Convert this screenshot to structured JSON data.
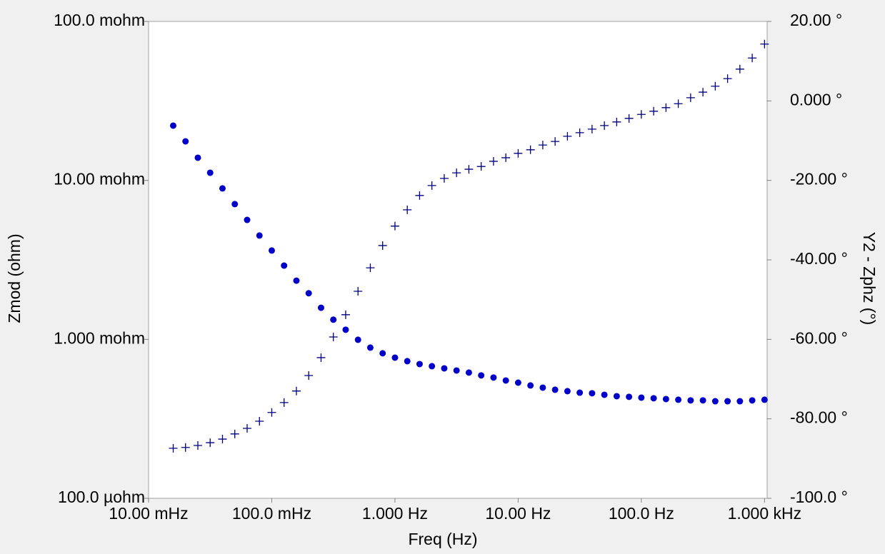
{
  "chart_data": {
    "type": "scatter",
    "x_label": "Freq (Hz)",
    "y_label": "Zmod (ohm)",
    "y2_label": "Y2 - Zphz (°)",
    "x_log": true,
    "y_log": true,
    "x": [
      0.01585,
      0.01995,
      0.02512,
      0.03162,
      0.03981,
      0.05012,
      0.0631,
      0.07943,
      0.1,
      0.1259,
      0.1585,
      0.1995,
      0.2512,
      0.3162,
      0.3981,
      0.5012,
      0.631,
      0.7943,
      1,
      1.259,
      1.585,
      1.995,
      2.512,
      3.162,
      3.981,
      5.012,
      6.31,
      7.943,
      10,
      12.59,
      15.85,
      19.95,
      25.12,
      31.62,
      39.81,
      50.12,
      63.1,
      79.43,
      100,
      125.9,
      158.5,
      199.5,
      251.2,
      316.2,
      398.1,
      501.2,
      631,
      794.3,
      1000
    ],
    "series": [
      {
        "color": "#0000c8",
        "marker": "dot",
        "axis": "y",
        "values": [
          0.02211,
          0.0176,
          0.01388,
          0.01117,
          0.0089,
          0.00709,
          0.00564,
          0.0045,
          0.00362,
          0.00291,
          0.00234,
          0.00195,
          0.00158,
          0.00133,
          0.00115,
          0.000994,
          0.000887,
          0.000817,
          0.000767,
          0.000729,
          0.000699,
          0.000678,
          0.000657,
          0.000637,
          0.000618,
          0.000593,
          0.000575,
          0.000551,
          0.000534,
          0.000513,
          0.000497,
          0.000482,
          0.000472,
          0.000462,
          0.000458,
          0.000448,
          0.000439,
          0.000435,
          0.00043,
          0.000426,
          0.000421,
          0.000417,
          0.000413,
          0.000413,
          0.000408,
          0.000408,
          0.000408,
          0.000413,
          0.000417
        ]
      },
      {
        "color": "#000080",
        "marker": "plus",
        "axis": "y2",
        "values": [
          -87.4,
          -87.2,
          -86.7,
          -86.0,
          -85.1,
          -83.8,
          -82.4,
          -80.6,
          -78.4,
          -75.9,
          -73.0,
          -69.1,
          -64.6,
          -59.4,
          -53.8,
          -47.9,
          -42.0,
          -36.4,
          -31.5,
          -27.4,
          -23.8,
          -21.3,
          -19.5,
          -18.1,
          -17.2,
          -16.5,
          -15.2,
          -14.3,
          -13.2,
          -12.3,
          -11.1,
          -10.2,
          -8.9,
          -8.0,
          -7.1,
          -6.2,
          -5.3,
          -4.4,
          -3.4,
          -2.6,
          -1.7,
          -0.7,
          0.8,
          2.2,
          3.7,
          5.6,
          8.0,
          10.8,
          14.3
        ]
      }
    ],
    "xlim": [
      0.01,
      1050
    ],
    "xticks": [
      {
        "value": 0.01,
        "label": "10.00 mHz"
      },
      {
        "value": 0.1,
        "label": "100.0 mHz"
      },
      {
        "value": 1,
        "label": "1.000 Hz"
      },
      {
        "value": 10,
        "label": "10.00 Hz"
      },
      {
        "value": 100,
        "label": "100.0 Hz"
      },
      {
        "value": 1000,
        "label": "1.000 kHz"
      }
    ],
    "ylim": [
      0.0001,
      0.1
    ],
    "yticks": [
      {
        "value": 0.0001,
        "label": "100.0 µohm"
      },
      {
        "value": 0.001,
        "label": "1.000 mohm"
      },
      {
        "value": 0.01,
        "label": "10.00 mohm"
      },
      {
        "value": 0.1,
        "label": "100.0 mohm"
      }
    ],
    "y2lim": [
      -100,
      20
    ],
    "y2ticks": [
      {
        "value": -100,
        "label": "-100.0 °"
      },
      {
        "value": -80,
        "label": "-80.00 °"
      },
      {
        "value": -60,
        "label": "-60.00 °"
      },
      {
        "value": -40,
        "label": "-40.00 °"
      },
      {
        "value": -20,
        "label": "-20.00 °"
      },
      {
        "value": 0,
        "label": "0.000 °"
      },
      {
        "value": 20,
        "label": "20.00 °"
      }
    ]
  }
}
